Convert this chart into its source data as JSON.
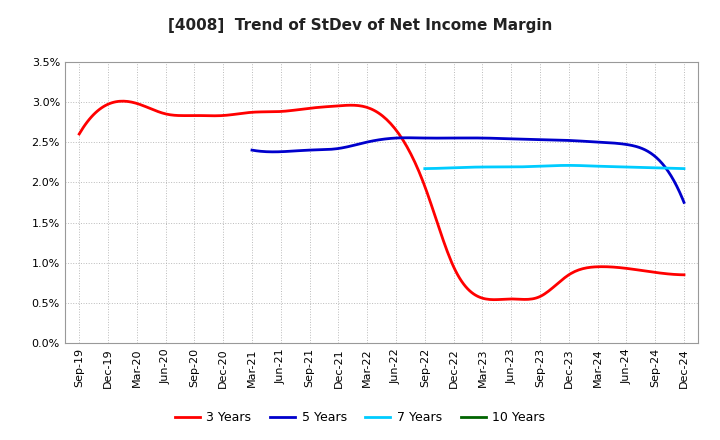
{
  "title": "[4008]  Trend of StDev of Net Income Margin",
  "x_labels": [
    "Sep-19",
    "Dec-19",
    "Mar-20",
    "Jun-20",
    "Sep-20",
    "Dec-20",
    "Mar-21",
    "Jun-21",
    "Sep-21",
    "Dec-21",
    "Mar-22",
    "Jun-22",
    "Sep-22",
    "Dec-22",
    "Mar-23",
    "Jun-23",
    "Sep-23",
    "Dec-23",
    "Mar-24",
    "Jun-24",
    "Sep-24",
    "Dec-24"
  ],
  "series_order": [
    "3 Years",
    "5 Years",
    "7 Years",
    "10 Years"
  ],
  "series": {
    "3 Years": {
      "color": "#ff0000",
      "data": [
        0.026,
        0.0297,
        0.0298,
        0.0285,
        0.0283,
        0.0283,
        0.0287,
        0.0288,
        0.0292,
        0.0295,
        0.0293,
        0.0265,
        0.0195,
        0.0095,
        0.0056,
        0.0055,
        0.0058,
        0.0085,
        0.0095,
        0.0093,
        0.0088,
        0.0085
      ]
    },
    "5 Years": {
      "color": "#0000cc",
      "data": [
        null,
        null,
        null,
        null,
        null,
        null,
        0.024,
        0.0238,
        0.024,
        0.0242,
        0.025,
        0.0255,
        0.0255,
        0.0255,
        0.0255,
        0.0254,
        0.0253,
        0.0252,
        0.025,
        0.0247,
        0.0232,
        0.0175
      ]
    },
    "7 Years": {
      "color": "#00ccff",
      "data": [
        null,
        null,
        null,
        null,
        null,
        null,
        null,
        null,
        null,
        null,
        null,
        null,
        0.0217,
        0.0218,
        0.0219,
        0.0219,
        0.022,
        0.0221,
        0.022,
        0.0219,
        0.0218,
        0.0217
      ]
    },
    "10 Years": {
      "color": "#006400",
      "data": [
        null,
        null,
        null,
        null,
        null,
        null,
        null,
        null,
        null,
        null,
        null,
        null,
        null,
        null,
        null,
        null,
        null,
        null,
        null,
        null,
        null,
        null
      ]
    }
  },
  "ylim": [
    0.0,
    0.035
  ],
  "yticks": [
    0.0,
    0.005,
    0.01,
    0.015,
    0.02,
    0.025,
    0.03,
    0.035
  ],
  "background_color": "#ffffff",
  "grid_color": "#aaaaaa",
  "title_fontsize": 11,
  "tick_fontsize": 8,
  "legend_fontsize": 9,
  "linewidth": 2.0
}
